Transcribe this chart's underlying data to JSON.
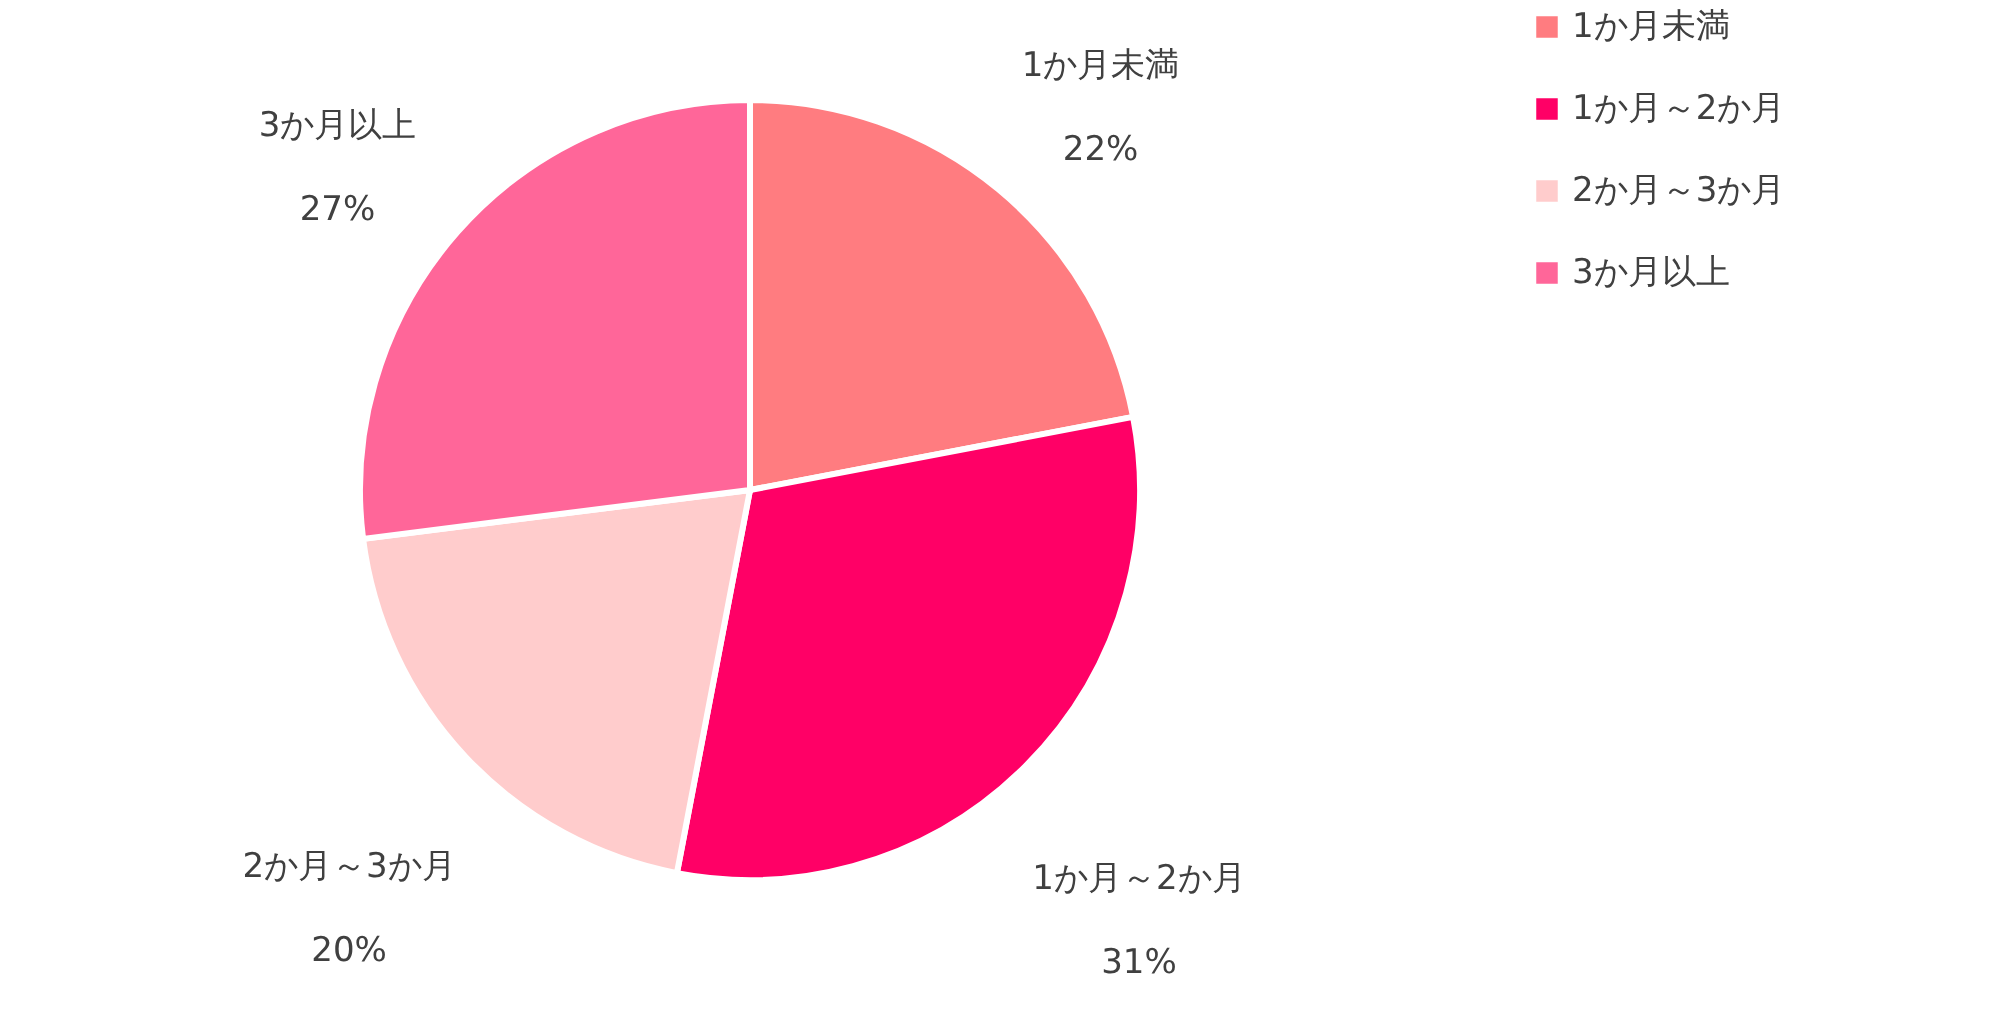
{
  "chart_data": {
    "type": "pie",
    "categories": [
      "1か月未満",
      "1か月～2か月",
      "2か月～3か月",
      "3か月以上"
    ],
    "values": [
      22,
      31,
      20,
      27
    ],
    "colors": [
      "#ff7c80",
      "#ff0066",
      "#ffcccc",
      "#ff6699"
    ],
    "value_labels": [
      "22%",
      "31%",
      "20%",
      "27%"
    ],
    "legend": "right"
  }
}
